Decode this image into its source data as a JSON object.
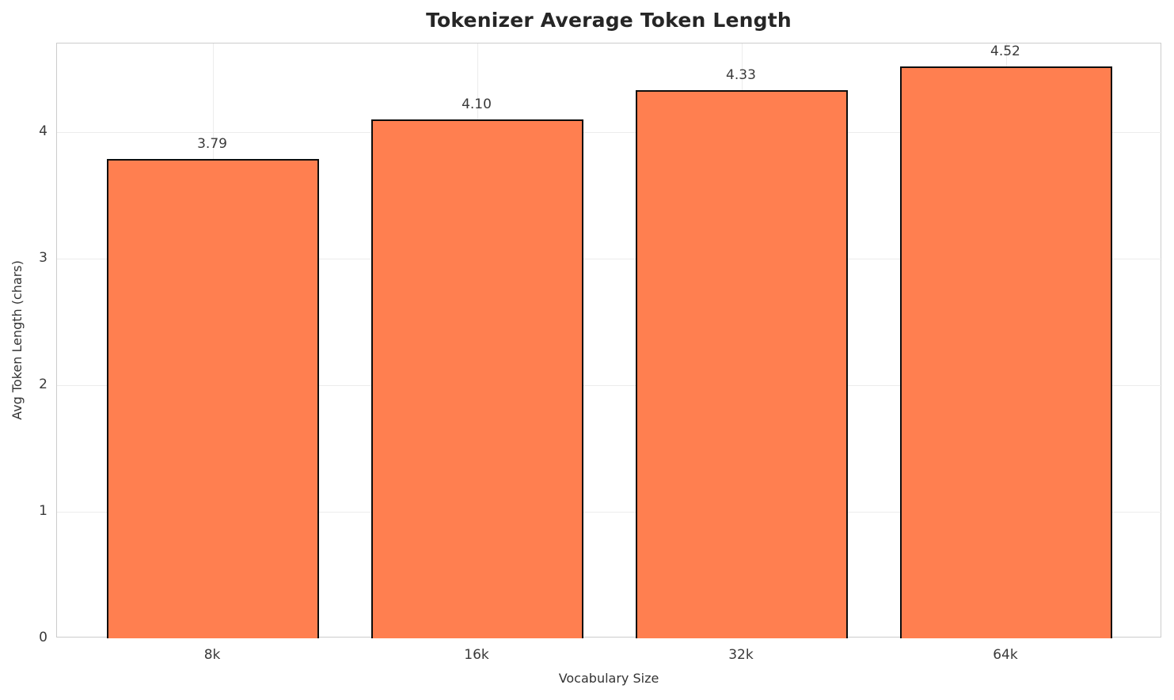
{
  "chart_data": {
    "type": "bar",
    "title": "Tokenizer Average Token Length",
    "xlabel": "Vocabulary Size",
    "ylabel": "Avg Token Length (chars)",
    "categories": [
      "8k",
      "16k",
      "32k",
      "64k"
    ],
    "values": [
      3.79,
      4.1,
      4.33,
      4.52
    ],
    "value_labels": [
      "3.79",
      "4.10",
      "4.33",
      "4.52"
    ],
    "yticks": [
      0,
      1,
      2,
      3,
      4
    ],
    "ytick_labels": [
      "0",
      "1",
      "2",
      "3",
      "4"
    ],
    "ylim": [
      0,
      4.7
    ],
    "xlim": [
      -0.59,
      3.59
    ],
    "bar_width": 0.8,
    "grid": "on",
    "legend": "none",
    "colors": {
      "bar_fill": "#ff7f50",
      "bar_edge": "#0d0d0d",
      "grid_line": "#ececec",
      "spine": "#cccccc",
      "title_text": "#262626",
      "tick_text": "#3a3a3a",
      "label_text": "#333333",
      "background": "#ffffff"
    }
  }
}
